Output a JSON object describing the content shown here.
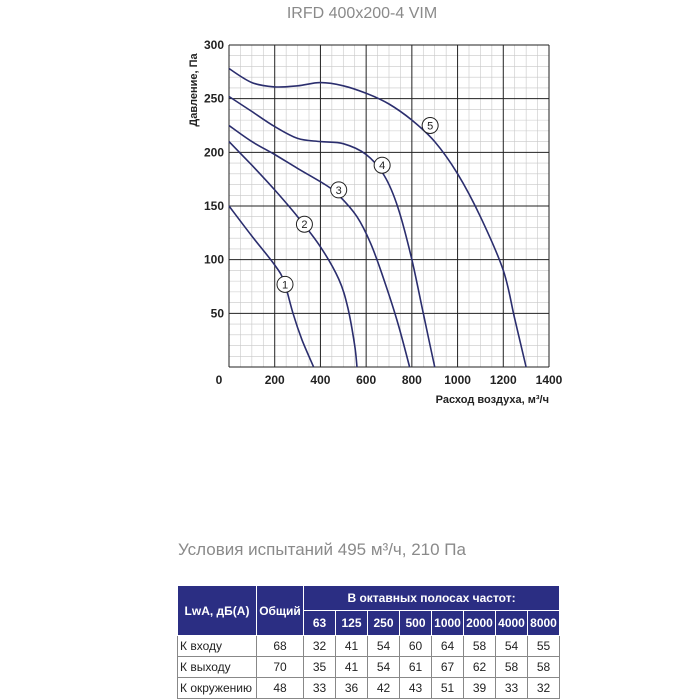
{
  "chart_data": {
    "type": "line",
    "title": "IRFD 400x200-4 VIM",
    "xlabel": "Расход воздуха, м³/ч",
    "ylabel": "Давление, Па",
    "xlim": [
      0,
      1400
    ],
    "ylim": [
      0,
      300
    ],
    "x_ticks": [
      "0",
      "200",
      "400",
      "600",
      "800",
      "1000",
      "1200",
      "1400"
    ],
    "y_ticks": [
      "50",
      "100",
      "150",
      "200",
      "250",
      "300"
    ],
    "grid": true,
    "line_color": "#2b2e6e",
    "series": [
      {
        "name": "1",
        "points": [
          [
            0,
            150
          ],
          [
            100,
            122
          ],
          [
            200,
            95
          ],
          [
            240,
            80
          ],
          [
            280,
            50
          ],
          [
            320,
            25
          ],
          [
            370,
            0
          ]
        ]
      },
      {
        "name": "2",
        "points": [
          [
            0,
            210
          ],
          [
            100,
            188
          ],
          [
            200,
            165
          ],
          [
            300,
            140
          ],
          [
            400,
            112
          ],
          [
            480,
            82
          ],
          [
            520,
            55
          ],
          [
            550,
            20
          ],
          [
            560,
            0
          ]
        ]
      },
      {
        "name": "3",
        "points": [
          [
            0,
            225
          ],
          [
            100,
            210
          ],
          [
            200,
            198
          ],
          [
            300,
            185
          ],
          [
            420,
            170
          ],
          [
            480,
            160
          ],
          [
            560,
            140
          ],
          [
            620,
            115
          ],
          [
            680,
            80
          ],
          [
            740,
            40
          ],
          [
            790,
            0
          ]
        ]
      },
      {
        "name": "4",
        "points": [
          [
            0,
            252
          ],
          [
            100,
            238
          ],
          [
            200,
            224
          ],
          [
            300,
            213
          ],
          [
            400,
            210
          ],
          [
            500,
            208
          ],
          [
            600,
            198
          ],
          [
            680,
            178
          ],
          [
            740,
            148
          ],
          [
            800,
            100
          ],
          [
            850,
            50
          ],
          [
            880,
            20
          ],
          [
            900,
            0
          ]
        ]
      },
      {
        "name": "5",
        "points": [
          [
            0,
            278
          ],
          [
            100,
            265
          ],
          [
            200,
            261
          ],
          [
            300,
            262
          ],
          [
            400,
            265
          ],
          [
            500,
            262
          ],
          [
            600,
            255
          ],
          [
            700,
            245
          ],
          [
            800,
            230
          ],
          [
            900,
            210
          ],
          [
            1000,
            180
          ],
          [
            1100,
            140
          ],
          [
            1200,
            90
          ],
          [
            1250,
            45
          ],
          [
            1300,
            0
          ]
        ]
      }
    ],
    "label_markers": [
      {
        "text": "1",
        "x": 245,
        "y": 77
      },
      {
        "text": "2",
        "x": 330,
        "y": 133
      },
      {
        "text": "3",
        "x": 480,
        "y": 165
      },
      {
        "text": "4",
        "x": 670,
        "y": 188
      },
      {
        "text": "5",
        "x": 880,
        "y": 225
      }
    ]
  },
  "test_conditions": "Условия испытаний 495 м³/ч, 210 Па",
  "table": {
    "header_label": "LwA, дБ(A)",
    "header_total": "Общий",
    "header_bands": "В октавных полосах частот:",
    "bands": [
      "63",
      "125",
      "250",
      "500",
      "1000",
      "2000",
      "4000",
      "8000"
    ],
    "rows": [
      {
        "label": "К входу",
        "total": "68",
        "values": [
          "32",
          "41",
          "54",
          "60",
          "64",
          "58",
          "54",
          "55"
        ]
      },
      {
        "label": "К выходу",
        "total": "70",
        "values": [
          "35",
          "41",
          "54",
          "61",
          "67",
          "62",
          "58",
          "58"
        ]
      },
      {
        "label": "К окружению",
        "total": "48",
        "values": [
          "33",
          "36",
          "42",
          "43",
          "51",
          "39",
          "33",
          "32"
        ]
      }
    ],
    "header_color": "#2b2e83"
  }
}
